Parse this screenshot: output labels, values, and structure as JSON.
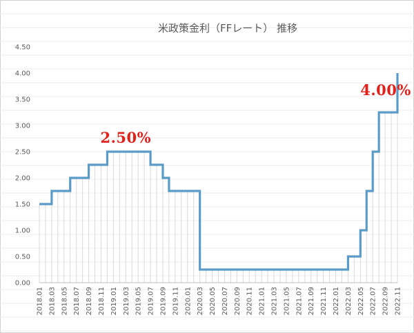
{
  "chart_data": {
    "type": "line",
    "step": true,
    "title": "米政策金利（FFレート） 推移",
    "xlabel": "",
    "ylabel": "",
    "ylim": [
      0,
      4.5
    ],
    "yticks": [
      "0.00",
      "0.50",
      "1.00",
      "1.50",
      "2.00",
      "2.50",
      "3.00",
      "3.50",
      "4.00",
      "4.50"
    ],
    "xticks": [
      "2018.01",
      "2018.03",
      "2018.05",
      "2018.07",
      "2018.09",
      "2018.11",
      "2019.01",
      "2019.03",
      "2019.05",
      "2019.07",
      "2019.09",
      "2019.11",
      "2020.01",
      "2020.03",
      "2020.05",
      "2020.07",
      "2020.09",
      "2020.11",
      "2021.01",
      "2021.03",
      "2021.05",
      "2021.07",
      "2021.09",
      "2021.11",
      "2022.01",
      "2022.03",
      "2022.05",
      "2022.07",
      "2022.09",
      "2022.11"
    ],
    "grid": "vertical minor lines at each month",
    "line_color": "#5b9bc8",
    "series": [
      {
        "values": [
          1.5,
          1.5,
          1.75,
          1.75,
          1.75,
          2.0,
          2.0,
          2.0,
          2.25,
          2.25,
          2.25,
          2.5,
          2.5,
          2.5,
          2.5,
          2.5,
          2.5,
          2.5,
          2.25,
          2.25,
          2.0,
          1.75,
          1.75,
          1.75,
          1.75,
          1.75,
          0.25,
          0.25,
          0.25,
          0.25,
          0.25,
          0.25,
          0.25,
          0.25,
          0.25,
          0.25,
          0.25,
          0.25,
          0.25,
          0.25,
          0.25,
          0.25,
          0.25,
          0.25,
          0.25,
          0.25,
          0.25,
          0.25,
          0.25,
          0.25,
          0.5,
          0.5,
          1.0,
          1.75,
          2.5,
          3.25,
          3.25,
          3.25,
          4.0
        ]
      }
    ],
    "annotations": [
      {
        "text": "2.50%",
        "index": 14
      },
      {
        "text": "4.00%",
        "index": 57
      }
    ]
  },
  "colors": {
    "line": "#5b9bc8",
    "annotation": "#e0201a",
    "grid": "#d9d9d9",
    "axis_text": "#595959"
  }
}
